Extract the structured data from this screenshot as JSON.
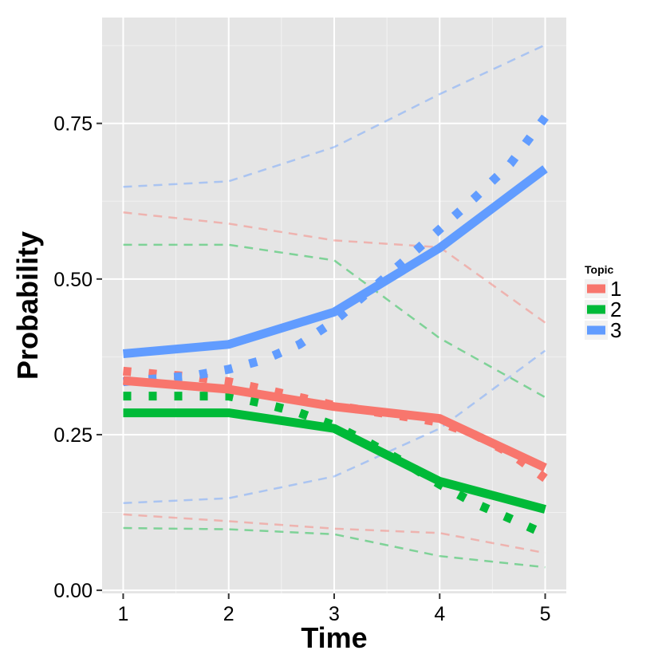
{
  "chart_data": {
    "type": "line",
    "xlabel": "Time",
    "ylabel": "Probability",
    "xlim": [
      0.8,
      5.2
    ],
    "ylim": [
      -0.005,
      0.92
    ],
    "x_ticks": [
      1,
      2,
      3,
      4,
      5
    ],
    "x_tick_labels": [
      "1",
      "2",
      "3",
      "4",
      "5"
    ],
    "y_ticks": [
      0,
      0.25,
      0.5,
      0.75
    ],
    "y_tick_labels": [
      "0.00",
      "0.25",
      "0.50",
      "0.75"
    ],
    "grid": true,
    "legend": {
      "title": "Topic",
      "position": "right"
    },
    "x": [
      1,
      2,
      3,
      4,
      5
    ],
    "x_dotted": [
      1,
      1.33,
      1.67,
      2,
      2.33,
      2.67,
      3,
      3.33,
      3.67,
      4,
      4.33,
      4.67,
      5
    ],
    "series": [
      {
        "name": "1",
        "color": "#F8766D",
        "estimate": [
          0.337,
          0.323,
          0.295,
          0.276,
          0.197
        ],
        "observed": [
          0.352,
          0.347,
          0.343,
          0.335,
          0.323,
          0.31,
          0.297,
          0.288,
          0.279,
          0.27,
          0.25,
          0.22,
          0.18
        ],
        "upper": [
          0.607,
          0.589,
          0.562,
          0.551,
          0.43
        ],
        "lower": [
          0.122,
          0.111,
          0.099,
          0.092,
          0.06
        ]
      },
      {
        "name": "2",
        "color": "#00BA38",
        "estimate": [
          0.285,
          0.285,
          0.26,
          0.175,
          0.13
        ],
        "observed": [
          0.312,
          0.312,
          0.312,
          0.312,
          0.3,
          0.285,
          0.265,
          0.237,
          0.205,
          0.17,
          0.14,
          0.115,
          0.09
        ],
        "upper": [
          0.555,
          0.555,
          0.53,
          0.405,
          0.31
        ],
        "lower": [
          0.1,
          0.098,
          0.09,
          0.055,
          0.037
        ]
      },
      {
        "name": "3",
        "color": "#619CFF",
        "estimate": [
          0.38,
          0.395,
          0.447,
          0.55,
          0.677
        ],
        "observed": [
          0.335,
          0.34,
          0.345,
          0.355,
          0.37,
          0.395,
          0.432,
          0.48,
          0.53,
          0.58,
          0.63,
          0.685,
          0.76
        ],
        "upper": [
          0.648,
          0.657,
          0.712,
          0.797,
          0.876
        ],
        "lower": [
          0.14,
          0.148,
          0.183,
          0.26,
          0.385
        ]
      }
    ]
  }
}
